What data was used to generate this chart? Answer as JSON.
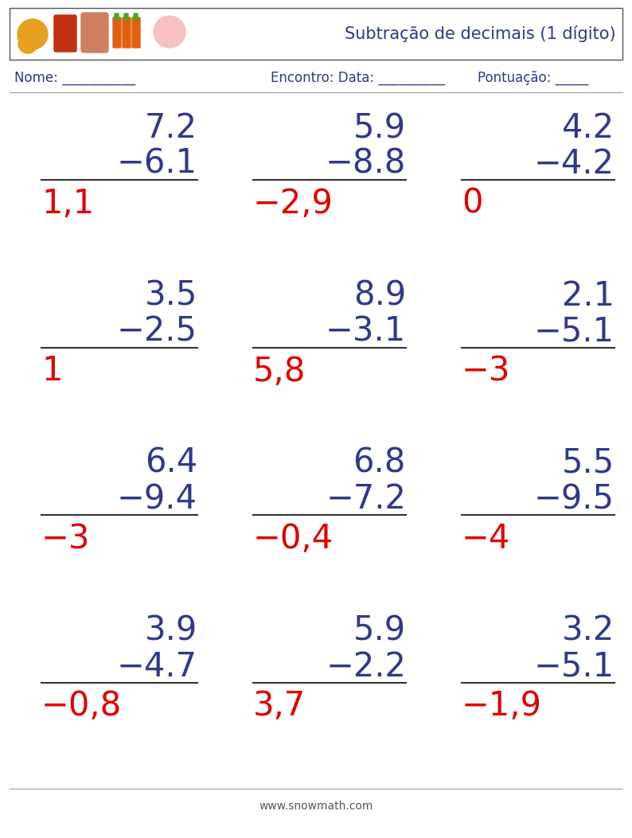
{
  "title": "Subtração de decimais (1 dígito)",
  "header_label_nome": "Nome: ___________",
  "header_label_encontro": "Encontro: Data: __________",
  "header_label_pontuacao": "Pontuação: _____",
  "footer": "www.snowmath.com",
  "problems": [
    {
      "num1": "7.2",
      "num2": "−6.1",
      "answer": "1,1",
      "answer_color": "#e00000"
    },
    {
      "num1": "5.9",
      "num2": "−8.8",
      "answer": "−2,9",
      "answer_color": "#e00000"
    },
    {
      "num1": "4.2",
      "num2": "−4.2",
      "answer": "0",
      "answer_color": "#e00000"
    },
    {
      "num1": "3.5",
      "num2": "−2.5",
      "answer": "1",
      "answer_color": "#e00000"
    },
    {
      "num1": "8.9",
      "num2": "−3.1",
      "answer": "5,8",
      "answer_color": "#e00000"
    },
    {
      "num1": "2.1",
      "num2": "−5.1",
      "answer": "−3",
      "answer_color": "#e00000"
    },
    {
      "num1": "6.4",
      "num2": "−9.4",
      "answer": "−3",
      "answer_color": "#e00000"
    },
    {
      "num1": "6.8",
      "num2": "−7.2",
      "answer": "−0,4",
      "answer_color": "#e00000"
    },
    {
      "num1": "5.5",
      "num2": "−9.5",
      "answer": "−4",
      "answer_color": "#e00000"
    },
    {
      "num1": "3.9",
      "num2": "−4.7",
      "answer": "−0,8",
      "answer_color": "#e00000"
    },
    {
      "num1": "5.9",
      "num2": "−2.2",
      "answer": "3,7",
      "answer_color": "#e00000"
    },
    {
      "num1": "3.2",
      "num2": "−5.1",
      "answer": "−1,9",
      "answer_color": "#e00000"
    }
  ],
  "num_cols": 3,
  "num_rows": 4,
  "text_color_dark": "#2e3a87",
  "text_color_answer": "#e00000",
  "background_color": "#ffffff",
  "header_box_color": "#ffffff",
  "header_border_color": "#555555",
  "font_size_num": 30,
  "font_size_answer": 30,
  "font_size_header": 12,
  "font_size_title": 15,
  "font_size_footer": 10
}
